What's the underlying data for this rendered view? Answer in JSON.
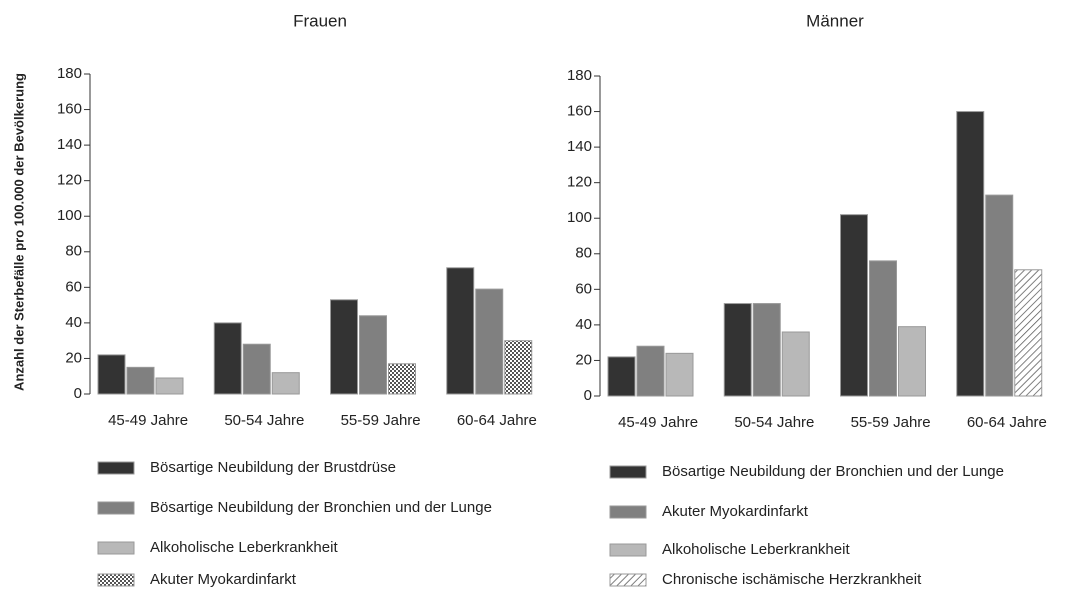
{
  "ylabel": "Anzahl der Sterbefälle pro 100.000 der Bevölkerung",
  "chart_data": [
    {
      "type": "bar",
      "title": "Frauen",
      "categories": [
        "45-49 Jahre",
        "50-54 Jahre",
        "55-59 Jahre",
        "60-64 Jahre"
      ],
      "series": [
        {
          "name": "Bösartige Neubildung der Brustdrüse",
          "color": "#333333",
          "values": [
            22,
            40,
            53,
            71
          ]
        },
        {
          "name": "Bösartige Neubildung der Bronchien und der Lunge",
          "color": "#808080",
          "values": [
            15,
            28,
            44,
            59
          ]
        },
        {
          "name": "Alkoholische Leberkrankheit",
          "color": "#b8b8b8",
          "values": [
            9,
            12,
            null,
            null
          ]
        },
        {
          "name": "Akuter Myokardinfarkt",
          "color": "#555555",
          "pattern": "checker",
          "values": [
            null,
            null,
            17,
            30
          ]
        }
      ],
      "ylim": [
        0,
        180
      ],
      "yticks": [
        0,
        20,
        40,
        60,
        80,
        100,
        120,
        140,
        160,
        180
      ]
    },
    {
      "type": "bar",
      "title": "Männer",
      "categories": [
        "45-49 Jahre",
        "50-54 Jahre",
        "55-59 Jahre",
        "60-64 Jahre"
      ],
      "series": [
        {
          "name": "Bösartige Neubildung der Bronchien und der Lunge",
          "color": "#333333",
          "values": [
            22,
            52,
            102,
            160
          ]
        },
        {
          "name": "Akuter Myokardinfarkt",
          "color": "#808080",
          "values": [
            28,
            52,
            76,
            113
          ]
        },
        {
          "name": "Alkoholische Leberkrankheit",
          "color": "#b8b8b8",
          "values": [
            24,
            36,
            39,
            null
          ]
        },
        {
          "name": "Chronische ischämische Herzkrankheit",
          "color": "#555555",
          "pattern": "hatch",
          "values": [
            null,
            null,
            null,
            71
          ]
        }
      ],
      "ylim": [
        0,
        180
      ],
      "yticks": [
        0,
        20,
        40,
        60,
        80,
        100,
        120,
        140,
        160,
        180
      ]
    }
  ]
}
